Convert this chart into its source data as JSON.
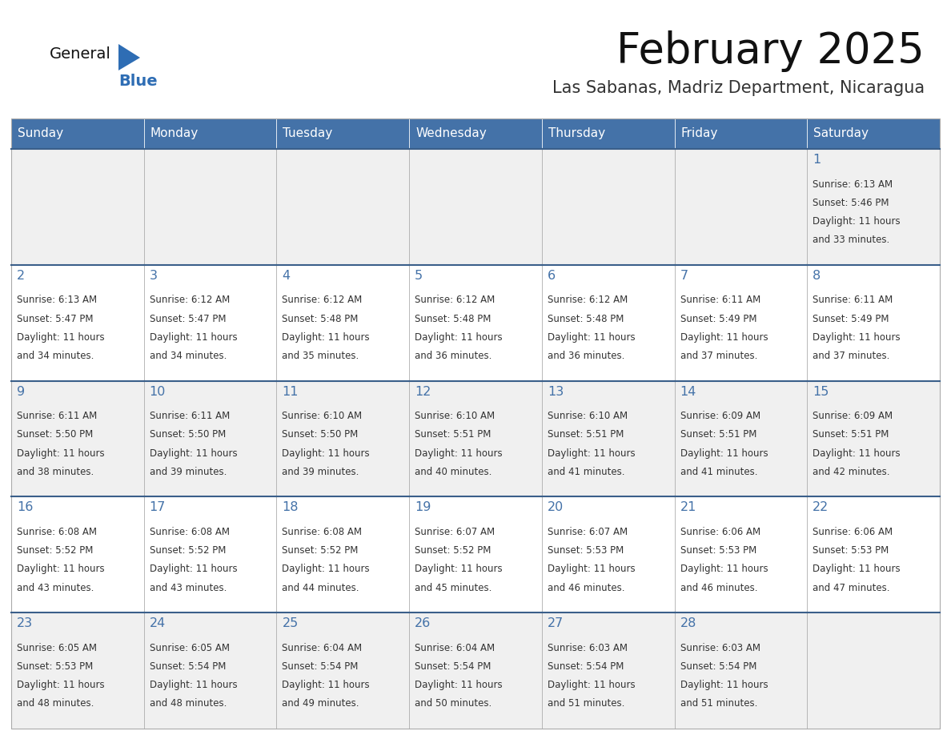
{
  "title": "February 2025",
  "subtitle": "Las Sabanas, Madriz Department, Nicaragua",
  "days_of_week": [
    "Sunday",
    "Monday",
    "Tuesday",
    "Wednesday",
    "Thursday",
    "Friday",
    "Saturday"
  ],
  "header_bg": "#4472a8",
  "header_text": "#ffffff",
  "row_bg_odd": "#f0f0f0",
  "row_bg_even": "#ffffff",
  "cell_border_color": "#aaaaaa",
  "row_top_border_color": "#3a5f8a",
  "day_number_color": "#4472a8",
  "info_text_color": "#333333",
  "title_color": "#111111",
  "subtitle_color": "#333333",
  "logo_general_color": "#111111",
  "logo_blue_color": "#2e6db4",
  "calendar_data": [
    [
      null,
      null,
      null,
      null,
      null,
      null,
      1
    ],
    [
      2,
      3,
      4,
      5,
      6,
      7,
      8
    ],
    [
      9,
      10,
      11,
      12,
      13,
      14,
      15
    ],
    [
      16,
      17,
      18,
      19,
      20,
      21,
      22
    ],
    [
      23,
      24,
      25,
      26,
      27,
      28,
      null
    ]
  ],
  "sunrise_data": {
    "1": "6:13 AM",
    "2": "6:13 AM",
    "3": "6:12 AM",
    "4": "6:12 AM",
    "5": "6:12 AM",
    "6": "6:12 AM",
    "7": "6:11 AM",
    "8": "6:11 AM",
    "9": "6:11 AM",
    "10": "6:11 AM",
    "11": "6:10 AM",
    "12": "6:10 AM",
    "13": "6:10 AM",
    "14": "6:09 AM",
    "15": "6:09 AM",
    "16": "6:08 AM",
    "17": "6:08 AM",
    "18": "6:08 AM",
    "19": "6:07 AM",
    "20": "6:07 AM",
    "21": "6:06 AM",
    "22": "6:06 AM",
    "23": "6:05 AM",
    "24": "6:05 AM",
    "25": "6:04 AM",
    "26": "6:04 AM",
    "27": "6:03 AM",
    "28": "6:03 AM"
  },
  "sunset_data": {
    "1": "5:46 PM",
    "2": "5:47 PM",
    "3": "5:47 PM",
    "4": "5:48 PM",
    "5": "5:48 PM",
    "6": "5:48 PM",
    "7": "5:49 PM",
    "8": "5:49 PM",
    "9": "5:50 PM",
    "10": "5:50 PM",
    "11": "5:50 PM",
    "12": "5:51 PM",
    "13": "5:51 PM",
    "14": "5:51 PM",
    "15": "5:51 PM",
    "16": "5:52 PM",
    "17": "5:52 PM",
    "18": "5:52 PM",
    "19": "5:52 PM",
    "20": "5:53 PM",
    "21": "5:53 PM",
    "22": "5:53 PM",
    "23": "5:53 PM",
    "24": "5:54 PM",
    "25": "5:54 PM",
    "26": "5:54 PM",
    "27": "5:54 PM",
    "28": "5:54 PM"
  },
  "daylight_minutes": {
    "1": 33,
    "2": 34,
    "3": 34,
    "4": 35,
    "5": 36,
    "6": 36,
    "7": 37,
    "8": 37,
    "9": 38,
    "10": 39,
    "11": 39,
    "12": 40,
    "13": 41,
    "14": 41,
    "15": 42,
    "16": 43,
    "17": 43,
    "18": 44,
    "19": 45,
    "20": 46,
    "21": 46,
    "22": 47,
    "23": 48,
    "24": 48,
    "25": 49,
    "26": 50,
    "27": 51,
    "28": 51
  }
}
